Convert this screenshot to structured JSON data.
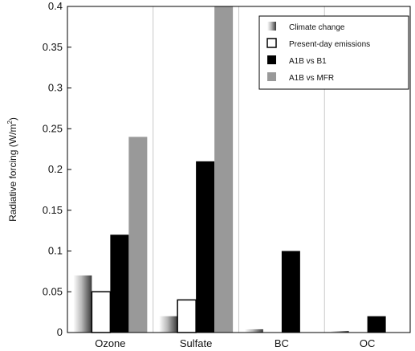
{
  "chart_data": {
    "type": "bar",
    "categories": [
      "Ozone",
      "Sulfate",
      "BC",
      "OC"
    ],
    "series": [
      {
        "name": "Climate change",
        "values": [
          0.07,
          0.02,
          0.004,
          0.002
        ],
        "style": "gradient-gray"
      },
      {
        "name": "Present-day emissions",
        "values": [
          0.05,
          0.04,
          0.0,
          0.0
        ],
        "style": "hollow"
      },
      {
        "name": "A1B vs B1",
        "values": [
          0.12,
          0.21,
          0.1,
          0.02
        ],
        "style": "#000000"
      },
      {
        "name": "A1B vs MFR",
        "values": [
          0.24,
          0.4,
          0.0,
          0.0
        ],
        "style": "#999999"
      }
    ],
    "ylabel_main": "Radiative forcing (W/m",
    "ylabel_sup": "2",
    "ylabel_close": ")",
    "ylim": [
      0,
      0.4
    ],
    "yticks": [
      0,
      0.05,
      0.1,
      0.15,
      0.2,
      0.25,
      0.3,
      0.35,
      0.4
    ],
    "ytick_labels": [
      "0",
      "0.05",
      "0.1",
      "0.15",
      "0.2",
      "0.25",
      "0.3",
      "0.35",
      "0.4"
    ],
    "grid": "vertical-between-categories",
    "legend_position": "top-right"
  }
}
